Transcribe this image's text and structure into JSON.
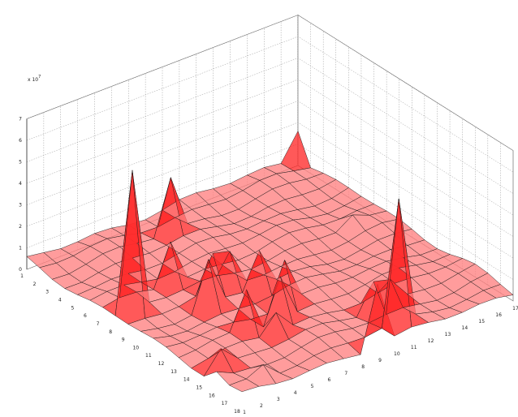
{
  "chart_data": {
    "type": "surface3d",
    "title": "",
    "xlabel": "",
    "ylabel": "",
    "zlabel": "",
    "z_exponent_label": "x 10",
    "z_exponent_power": "7",
    "x_ticks": [
      "1",
      "2",
      "3",
      "4",
      "5",
      "6",
      "7",
      "8",
      "9",
      "10",
      "11",
      "12",
      "13",
      "14",
      "15",
      "16",
      "17"
    ],
    "y_ticks": [
      "1",
      "2",
      "3",
      "4",
      "5",
      "6",
      "7",
      "8",
      "9",
      "10",
      "11",
      "12",
      "13",
      "14",
      "15",
      "16",
      "17",
      "18"
    ],
    "z_ticks": [
      "0",
      "1",
      "2",
      "3",
      "4",
      "5",
      "6",
      "7"
    ],
    "zlim": [
      0,
      7
    ],
    "grid": true,
    "colors": {
      "face": "#ff8080",
      "face_bright": "#ff2a2a",
      "edge": "#1a1a1a",
      "grid": "#9a9a9a"
    },
    "base_level": 0.4,
    "peaks": [
      {
        "x": 17,
        "y": 1,
        "z": 1.6
      },
      {
        "x": 2,
        "y": 8,
        "z": 6.9
      },
      {
        "x": 8,
        "y": 3,
        "z": 2.9
      },
      {
        "x": 5,
        "y": 7,
        "z": 2.3
      },
      {
        "x": 5,
        "y": 10,
        "z": 2.6
      },
      {
        "x": 5,
        "y": 13,
        "z": 2.3
      },
      {
        "x": 7,
        "y": 9,
        "z": 2.0
      },
      {
        "x": 8,
        "y": 10,
        "z": 2.1
      },
      {
        "x": 8,
        "y": 12,
        "z": 2.4
      },
      {
        "x": 7,
        "y": 13,
        "z": 2.3
      },
      {
        "x": 2,
        "y": 15,
        "z": 1.2
      },
      {
        "x": 6,
        "y": 14,
        "z": 1.3
      },
      {
        "x": 11,
        "y": 15,
        "z": 1.6
      },
      {
        "x": 15,
        "y": 8,
        "z": 0.9
      },
      {
        "x": 1,
        "y": 16,
        "z": 0.8
      },
      {
        "x": 3,
        "y": 17,
        "z": 0.9
      },
      {
        "x": 11,
        "y": 17,
        "z": 6.2
      },
      {
        "x": 9,
        "y": 18,
        "z": 3.2
      },
      {
        "x": 12,
        "y": 15,
        "z": 1.4
      },
      {
        "x": 6,
        "y": 9,
        "z": 2.2
      }
    ]
  }
}
